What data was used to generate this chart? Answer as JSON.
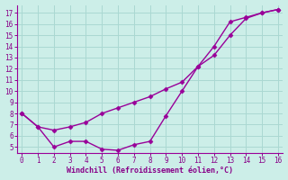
{
  "xlabel": "Windchill (Refroidissement éolien,°C)",
  "background_color": "#cceee8",
  "grid_color": "#aad8d2",
  "line_color": "#990099",
  "x_line1": [
    0,
    1,
    2,
    3,
    4,
    5,
    6,
    7,
    8,
    9,
    10,
    11,
    12,
    13,
    14,
    15,
    16
  ],
  "y_line1": [
    8.0,
    6.8,
    6.5,
    6.8,
    7.2,
    8.0,
    8.5,
    9.0,
    9.5,
    10.2,
    10.8,
    12.2,
    13.2,
    15.0,
    16.5,
    17.0,
    17.3
  ],
  "x_line2": [
    0,
    1,
    2,
    3,
    4,
    5,
    6,
    7,
    8,
    9,
    10,
    11,
    12,
    13,
    14,
    15,
    16
  ],
  "y_line2": [
    8.0,
    6.8,
    5.0,
    5.5,
    5.5,
    4.8,
    4.7,
    5.2,
    5.5,
    7.8,
    10.0,
    12.2,
    14.0,
    16.2,
    16.6,
    17.0,
    17.3
  ],
  "xlim": [
    -0.3,
    16.3
  ],
  "ylim": [
    4.5,
    17.7
  ],
  "yticks": [
    5,
    6,
    7,
    8,
    9,
    10,
    11,
    12,
    13,
    14,
    15,
    16,
    17
  ],
  "xticks": [
    0,
    1,
    2,
    3,
    4,
    5,
    6,
    7,
    8,
    9,
    10,
    11,
    12,
    13,
    14,
    15,
    16
  ],
  "font_color": "#880088",
  "marker": "D",
  "marker_size": 2.5,
  "line_width": 1.0
}
